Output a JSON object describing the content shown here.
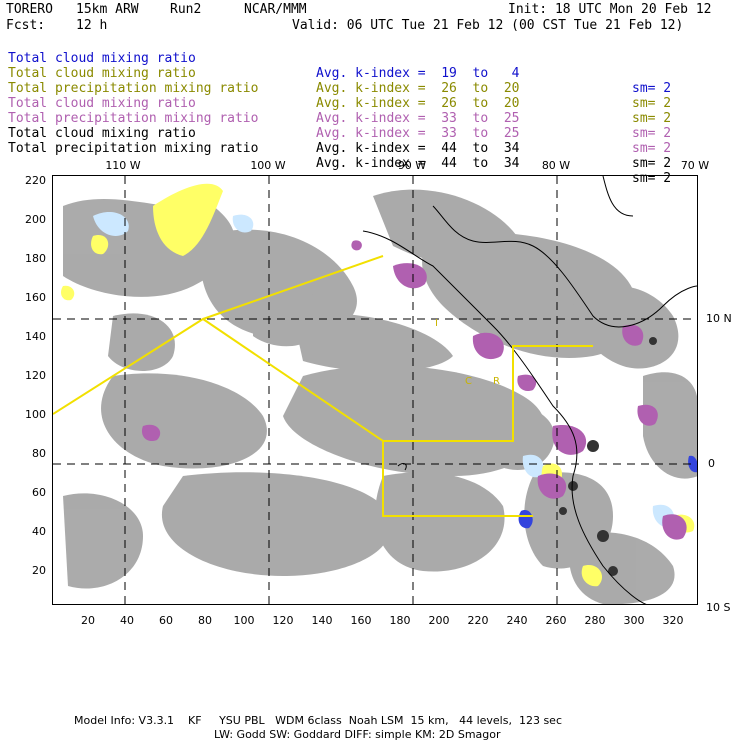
{
  "header": {
    "model": "TORERO",
    "resolution": "15km ARW",
    "run": "Run2",
    "source": "NCAR/MMM",
    "init": "Init: 18 UTC Mon 20 Feb 12",
    "fcst_label": "Fcst:",
    "fcst_value": "12 h",
    "valid": "Valid: 06 UTC Tue 21 Feb 12 (00 CST Tue 21 Feb 12)"
  },
  "legend": [
    {
      "field": "Total cloud mixing ratio",
      "range": "Avg. k-index =  19  to   4",
      "sm": "sm= 2",
      "color": "#1010cc"
    },
    {
      "field": "Total cloud mixing ratio",
      "range": "Avg. k-index =  26  to  20",
      "sm": "sm= 2",
      "color": "#8a8a00"
    },
    {
      "field": "Total precipitation mixing ratio",
      "range": "Avg. k-index =  26  to  20",
      "sm": "sm= 2",
      "color": "#8a8a00"
    },
    {
      "field": "Total cloud mixing ratio",
      "range": "Avg. k-index =  33  to  25",
      "sm": "sm= 2",
      "color": "#b060b0"
    },
    {
      "field": "Total precipitation mixing ratio",
      "range": "Avg. k-index =  33  to  25",
      "sm": "sm= 2",
      "color": "#b060b0"
    },
    {
      "field": "Total cloud mixing ratio",
      "range": "Avg. k-index =  44  to  34",
      "sm": "sm= 2",
      "color": "#000000"
    },
    {
      "field": "Total precipitation mixing ratio",
      "range": "Avg. k-index =  44  to  34",
      "sm": "sm= 2",
      "color": "#000000"
    }
  ],
  "axes": {
    "top_lon": [
      "110 W",
      "100 W",
      "90 W",
      "80 W",
      "70 W"
    ],
    "right_lat": [
      "10 N",
      "0",
      "10 S"
    ],
    "left_ticks": [
      "220",
      "200",
      "180",
      "160",
      "140",
      "120",
      "100",
      "80",
      "60",
      "40",
      "20"
    ],
    "bottom_ticks": [
      "20",
      "40",
      "60",
      "80",
      "100",
      "120",
      "140",
      "160",
      "180",
      "200",
      "220",
      "240",
      "260",
      "280",
      "300",
      "320"
    ]
  },
  "map_labels": {
    "region_i": "I",
    "region_c": "C",
    "region_r": "R"
  },
  "colors": {
    "gray_cloud": "#a6a6a6",
    "yellow": "#ffff66",
    "purple": "#b060b0",
    "light_blue": "#cce8ff",
    "blue": "#3344dd",
    "domain_box": "#f2e000"
  },
  "footer": {
    "line1": "Model Info: V3.3.1    KF     YSU PBL   WDM 6class  Noah LSM  15 km,   44 levels,  123 sec",
    "line2": "LW: Godd SW: Goddard DIFF: simple KM: 2D Smagor"
  }
}
